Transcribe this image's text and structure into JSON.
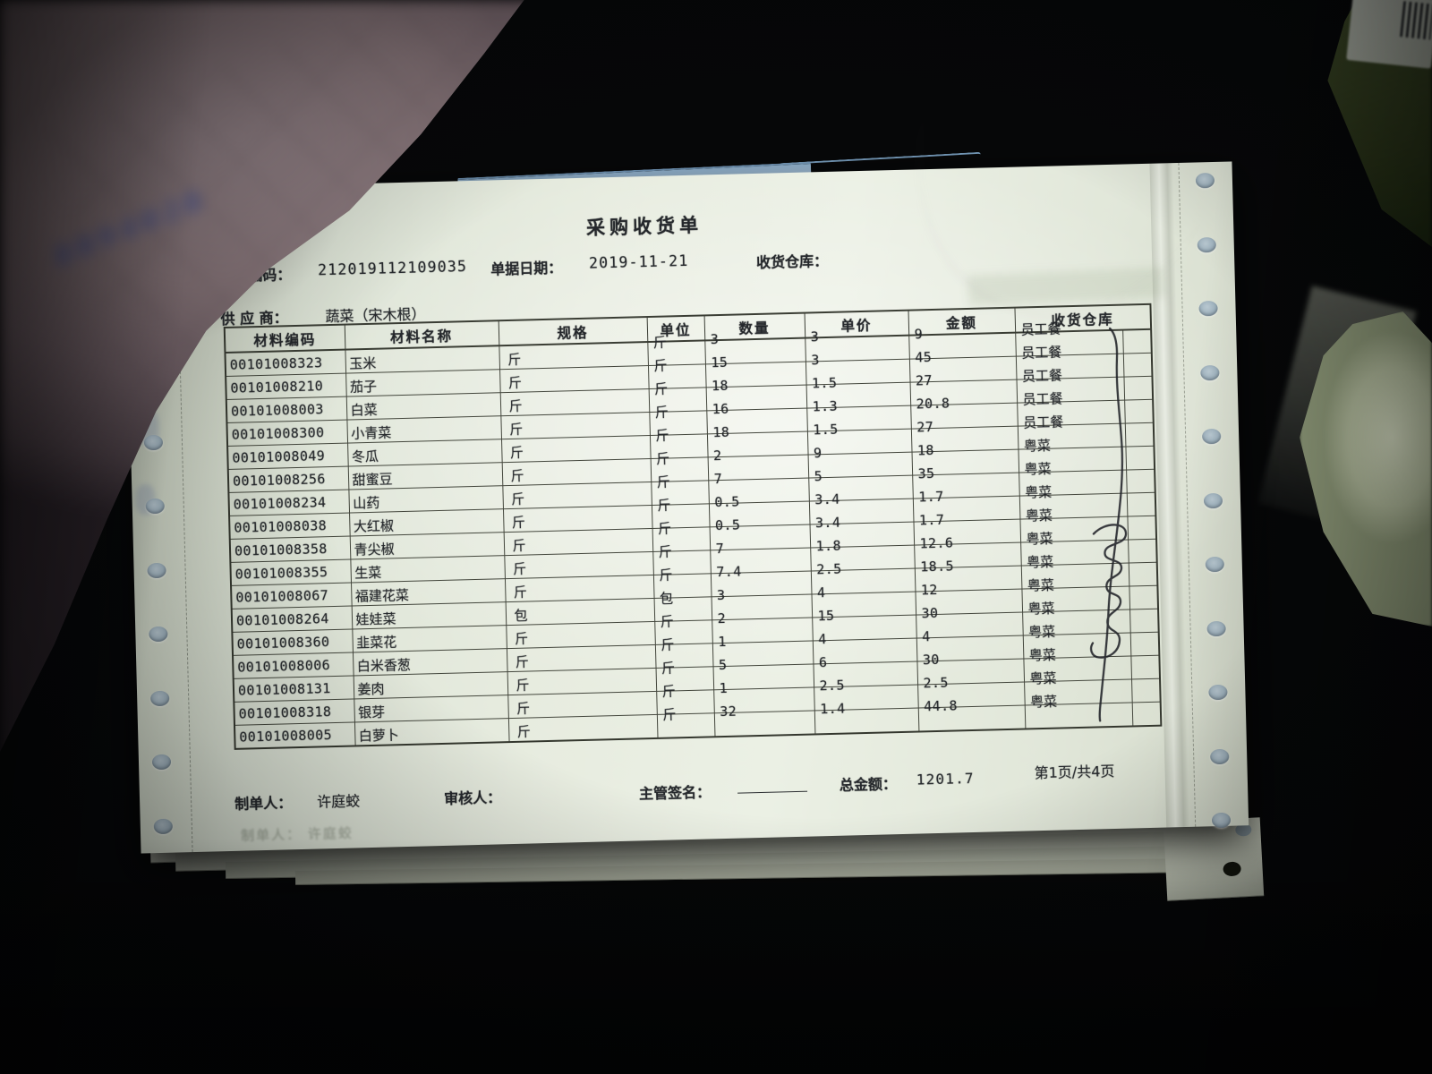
{
  "receipt": {
    "title": "采购收货单",
    "header": {
      "doc_no_label": "单据编码：",
      "doc_no": "212019112109035",
      "date_label": "单据日期：",
      "date": "2019-11-21",
      "warehouse_label": "收货仓库：",
      "supplier_label": "供 应 商：",
      "supplier": "蔬菜（宋木根）"
    },
    "table": {
      "columns": [
        "材料编码",
        "材料名称",
        "规格",
        "单位",
        "数量",
        "单价",
        "金额",
        "收货仓库"
      ],
      "rows": [
        {
          "code": "00101008323",
          "name": "玉米",
          "spec": "斤",
          "unit": "斤",
          "qty": "3",
          "price": "3",
          "amount": "9",
          "warehouse": "员工餐",
          "extra": ""
        },
        {
          "code": "00101008210",
          "name": "茄子",
          "spec": "斤",
          "unit": "斤",
          "qty": "15",
          "price": "3",
          "amount": "45",
          "warehouse": "员工餐",
          "extra": ""
        },
        {
          "code": "00101008003",
          "name": "白菜",
          "spec": "斤",
          "unit": "斤",
          "qty": "18",
          "price": "1.5",
          "amount": "27",
          "warehouse": "员工餐",
          "extra": ""
        },
        {
          "code": "00101008300",
          "name": "小青菜",
          "spec": "斤",
          "unit": "斤",
          "qty": "16",
          "price": "1.3",
          "amount": "20.8",
          "warehouse": "员工餐",
          "extra": ""
        },
        {
          "code": "00101008049",
          "name": "冬瓜",
          "spec": "斤",
          "unit": "斤",
          "qty": "18",
          "price": "1.5",
          "amount": "27",
          "warehouse": "员工餐",
          "extra": ""
        },
        {
          "code": "00101008256",
          "name": "甜蜜豆",
          "spec": "斤",
          "unit": "斤",
          "qty": "2",
          "price": "9",
          "amount": "18",
          "warehouse": "粤菜",
          "extra": ""
        },
        {
          "code": "00101008234",
          "name": "山药",
          "spec": "斤",
          "unit": "斤",
          "qty": "7",
          "price": "5",
          "amount": "35",
          "warehouse": "粤菜",
          "extra": ""
        },
        {
          "code": "00101008038",
          "name": "大红椒",
          "spec": "斤",
          "unit": "斤",
          "qty": "0.5",
          "price": "3.4",
          "amount": "1.7",
          "warehouse": "粤菜",
          "extra": ""
        },
        {
          "code": "00101008358",
          "name": "青尖椒",
          "spec": "斤",
          "unit": "斤",
          "qty": "0.5",
          "price": "3.4",
          "amount": "1.7",
          "warehouse": "粤菜",
          "extra": ""
        },
        {
          "code": "00101008355",
          "name": "生菜",
          "spec": "斤",
          "unit": "斤",
          "qty": "7",
          "price": "1.8",
          "amount": "12.6",
          "warehouse": "粤菜",
          "extra": ""
        },
        {
          "code": "00101008067",
          "name": "福建花菜",
          "spec": "斤",
          "unit": "斤",
          "qty": "7.4",
          "price": "2.5",
          "amount": "18.5",
          "warehouse": "粤菜",
          "extra": ""
        },
        {
          "code": "00101008264",
          "name": "娃娃菜",
          "spec": "包",
          "unit": "包",
          "qty": "3",
          "price": "4",
          "amount": "12",
          "warehouse": "粤菜",
          "extra": ""
        },
        {
          "code": "00101008360",
          "name": "韭菜花",
          "spec": "斤",
          "unit": "斤",
          "qty": "2",
          "price": "15",
          "amount": "30",
          "warehouse": "粤菜",
          "extra": ""
        },
        {
          "code": "00101008006",
          "name": "白米香葱",
          "spec": "斤",
          "unit": "斤",
          "qty": "1",
          "price": "4",
          "amount": "4",
          "warehouse": "粤菜",
          "extra": ""
        },
        {
          "code": "00101008131",
          "name": "姜肉",
          "spec": "斤",
          "unit": "斤",
          "qty": "5",
          "price": "6",
          "amount": "30",
          "warehouse": "粤菜",
          "extra": ""
        },
        {
          "code": "00101008318",
          "name": "银芽",
          "spec": "斤",
          "unit": "斤",
          "qty": "1",
          "price": "2.5",
          "amount": "2.5",
          "warehouse": "粤菜",
          "extra": ""
        },
        {
          "code": "00101008005",
          "name": "白萝卜",
          "spec": "斤",
          "unit": "斤",
          "qty": "32",
          "price": "1.4",
          "amount": "44.8",
          "warehouse": "粤菜",
          "extra": ""
        }
      ]
    },
    "footer": {
      "preparer_label": "制单人：",
      "preparer": "许庭蛟",
      "reviewer_label": "审核人：",
      "supervisor_label": "主管签名：",
      "total_label": "总金额：",
      "total": "1201.7",
      "page_info": "第1页/共4页"
    },
    "ghost_footer": "制单人：  许庭蛟",
    "stamp_number": "8894028"
  },
  "colors": {
    "background": "#060708",
    "paper": "#e7ecdf",
    "table_line": "#43463c",
    "ink": "#24272b",
    "blue_sheet": "#a6c0d8",
    "stamp_blue": "#46549c",
    "machine_green": "#2a3418",
    "foreground_blur": "#877579"
  }
}
